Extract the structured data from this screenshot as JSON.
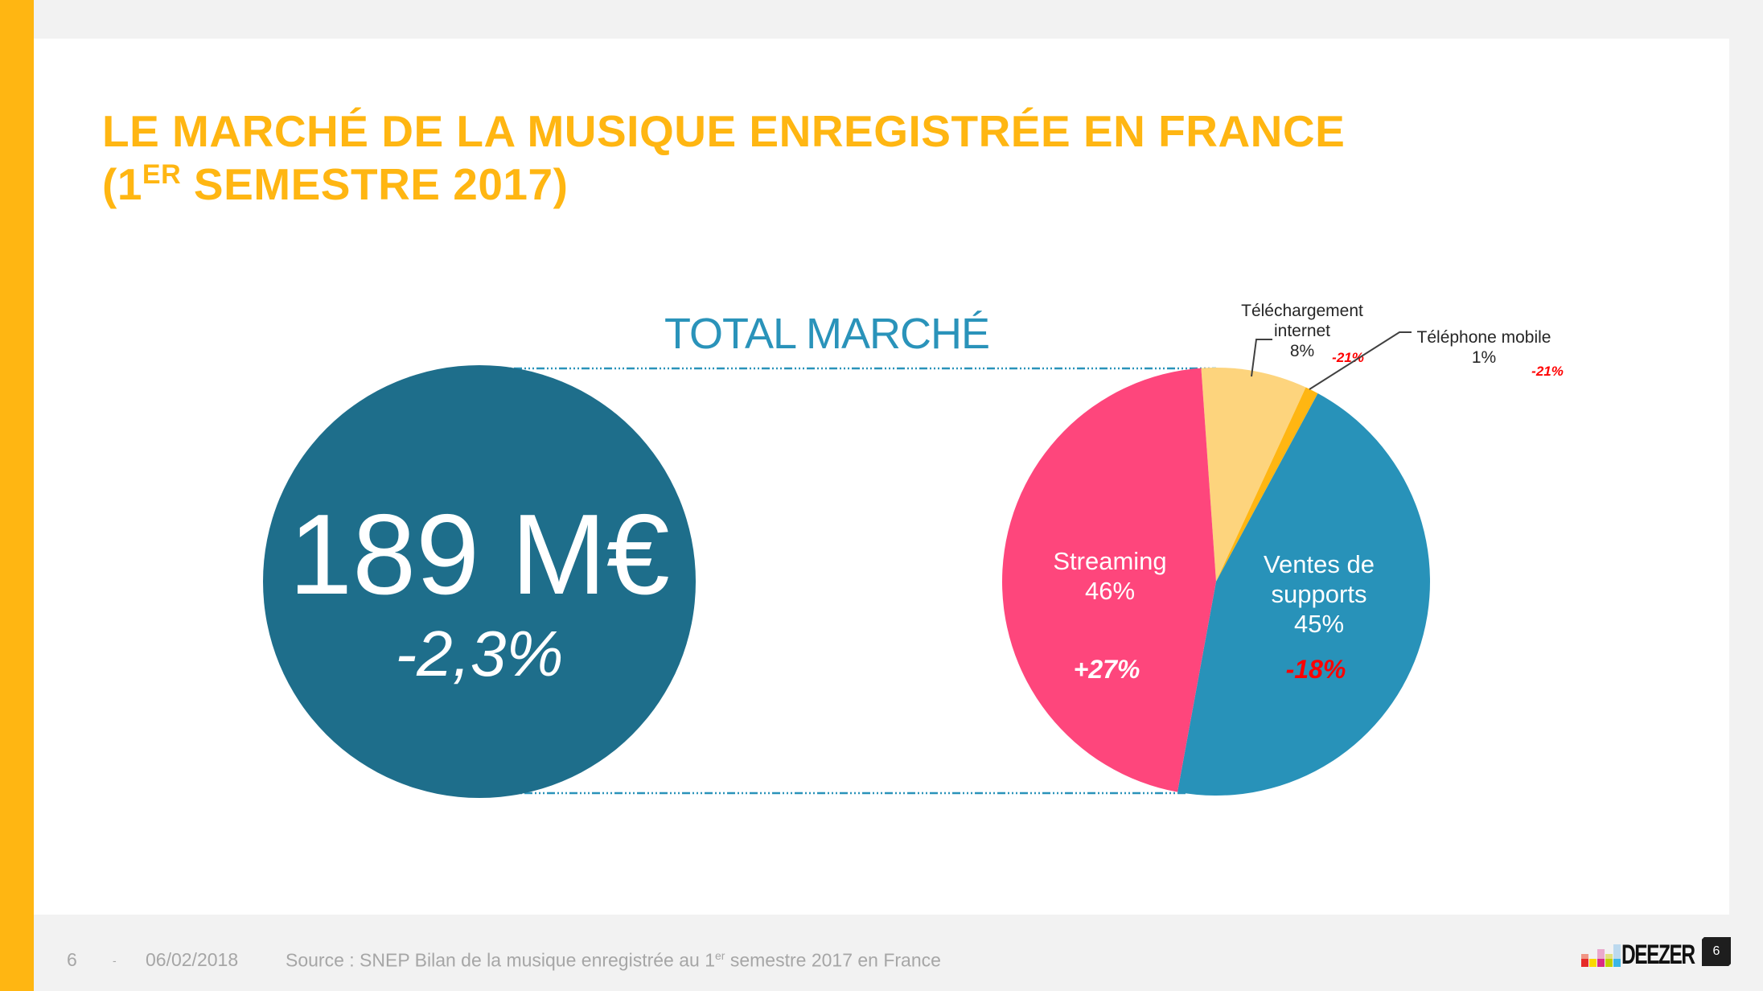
{
  "slide": {
    "title_line1": "LE MARCHÉ DE LA MUSIQUE ENREGISTRÉE EN FRANCE",
    "title_line2_prefix": "(1",
    "title_line2_sup": "ER",
    "title_line2_rest": " SEMESTRE 2017)",
    "accent_color": "#ffb612"
  },
  "total": {
    "heading": "TOTAL MARCHÉ",
    "value": "189 M€",
    "change": "-2,3%",
    "circle_color": "#1e6e8b"
  },
  "chart_data": {
    "type": "pie",
    "title": "TOTAL MARCHÉ",
    "start_angle_deg": -4,
    "slices": [
      {
        "label": "Téléchargement internet",
        "label_lines": [
          "Téléchargement",
          "internet"
        ],
        "share_label": "8%",
        "value": 8,
        "change": "-21%",
        "color": "#fdd47d",
        "label_style": "outside",
        "change_color": "#ff0000"
      },
      {
        "label": "Téléphone mobile",
        "label_lines": [
          "Téléphone mobile"
        ],
        "share_label": "1%",
        "value": 1,
        "change": "-21%",
        "color": "#ffb612",
        "label_style": "outside",
        "change_color": "#ff0000"
      },
      {
        "label": "Ventes de supports",
        "label_lines": [
          "Ventes de",
          "supports"
        ],
        "share_label": "45%",
        "value": 45,
        "change": "-18%",
        "color": "#2892b9",
        "label_style": "inside",
        "change_color": "#ff0000"
      },
      {
        "label": "Streaming",
        "label_lines": [
          "Streaming"
        ],
        "share_label": "46%",
        "value": 46,
        "change": "+27%",
        "color": "#fe467c",
        "label_style": "inside",
        "change_color": "#ffffff"
      }
    ]
  },
  "footer": {
    "page_number": "6",
    "separator": "-",
    "date": "06/02/2018",
    "source_prefix": "Source  : SNEP Bilan de la musique enregistrée au 1",
    "source_sup": "er",
    "source_suffix": " semestre 2017 en France",
    "brand": "DEEZER",
    "badge_number": "6"
  }
}
